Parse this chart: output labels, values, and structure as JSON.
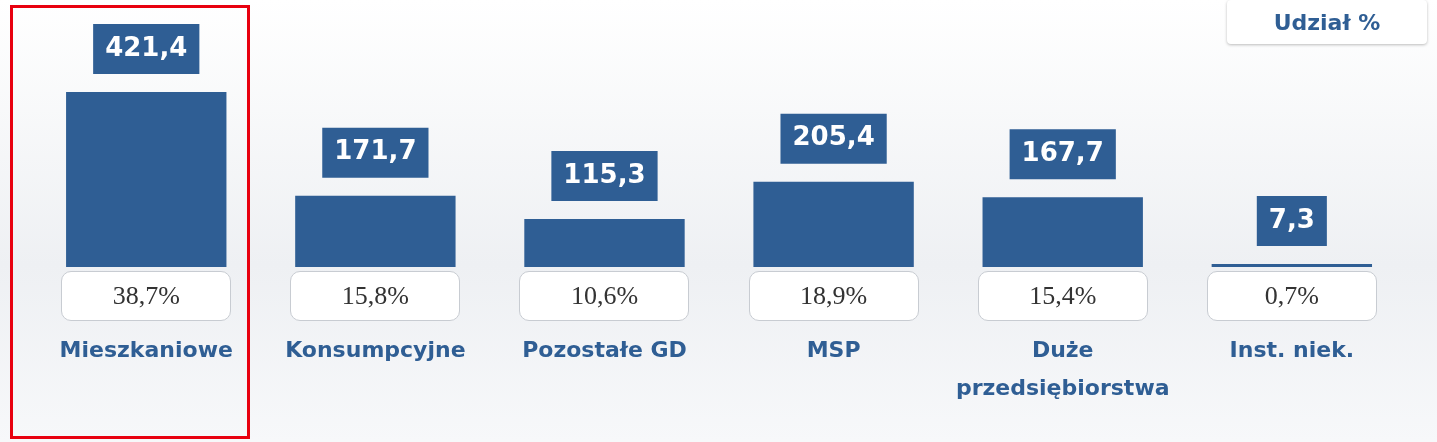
{
  "chart_data": {
    "type": "bar",
    "categories": [
      "Mieszkaniowe",
      "Konsumpcyjne",
      "Pozostałe GD",
      "MSP",
      "Duże przedsiębiorstwa",
      "Inst. niek."
    ],
    "values": [
      421.4,
      171.7,
      115.3,
      205.4,
      167.7,
      7.3
    ],
    "value_labels": [
      "421,4",
      "171,7",
      "115,3",
      "205,4",
      "167,7",
      "7,3"
    ],
    "color": "#2f5e94",
    "annotations": [
      "Udział %",
      "38,7%",
      "15,8%",
      "10,6%",
      "18,9%",
      "15,4%",
      "0,7%"
    ],
    "grid": false,
    "legend": false
  }
}
